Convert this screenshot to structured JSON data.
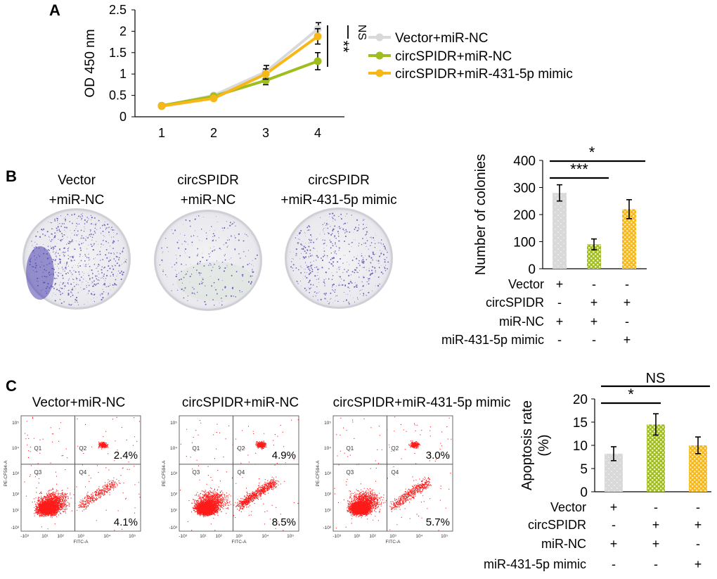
{
  "panels": {
    "a": "A",
    "b": "B",
    "c": "C"
  },
  "colors": {
    "vector": "#d9d9d9",
    "circ_nc": "#9fbd1d",
    "circ_mimic": "#f7b718",
    "flow_dot": "#ff1a1a",
    "plate_stain": "#4b3fae"
  },
  "chart_data": [
    {
      "id": "A",
      "type": "line",
      "title": "",
      "xlabel": "",
      "ylabel": "OD 450 nm",
      "x": [
        1,
        2,
        3,
        4
      ],
      "x_ticks": [
        "1",
        "2",
        "3",
        "4"
      ],
      "ylim": [
        0,
        2.5
      ],
      "y_ticks": [
        "0",
        "0.5",
        "1",
        "1.5",
        "2",
        "2.5"
      ],
      "series": [
        {
          "name": "Vector+miR-NC",
          "values": [
            0.25,
            0.5,
            1.05,
            2.05
          ],
          "errors": [
            0.03,
            0.04,
            0.15,
            0.15
          ],
          "color_key": "vector"
        },
        {
          "name": "circSPIDR+miR-NC",
          "values": [
            0.26,
            0.48,
            0.85,
            1.3
          ],
          "errors": [
            0.03,
            0.04,
            0.1,
            0.2
          ],
          "color_key": "circ_nc"
        },
        {
          "name": "circSPIDR+miR-431-5p mimic",
          "values": [
            0.25,
            0.43,
            1.0,
            1.88
          ],
          "errors": [
            0.03,
            0.04,
            0.12,
            0.18
          ],
          "color_key": "circ_mimic"
        }
      ],
      "significance": [
        "**",
        "NS"
      ],
      "legend_position": "right"
    },
    {
      "id": "B",
      "type": "bar",
      "ylabel": "Number of colonies",
      "ylim": [
        0,
        400
      ],
      "y_ticks": [
        "0",
        "100",
        "200",
        "300",
        "400"
      ],
      "values": [
        280,
        90,
        220
      ],
      "errors": [
        30,
        20,
        35
      ],
      "patterns": [
        "vector",
        "circ_nc",
        "circ_mimic"
      ],
      "significance": [
        "***",
        "*"
      ],
      "conditions": [
        {
          "label": "Vector",
          "marks": [
            "+",
            "-",
            "-"
          ]
        },
        {
          "label": "circSPIDR",
          "marks": [
            "-",
            "+",
            "+"
          ]
        },
        {
          "label": "miR-NC",
          "marks": [
            "+",
            "+",
            "-"
          ]
        },
        {
          "label": "miR-431-5p mimic",
          "marks": [
            "-",
            "-",
            "+"
          ]
        }
      ]
    },
    {
      "id": "C",
      "type": "bar",
      "ylabel_line1": "Apoptosis rate",
      "ylabel_line2": "(%)",
      "ylim": [
        0,
        20
      ],
      "y_ticks": [
        "0",
        "5",
        "10",
        "15",
        "20"
      ],
      "values": [
        8.2,
        14.5,
        10.0
      ],
      "errors": [
        1.5,
        2.3,
        1.8
      ],
      "patterns": [
        "vector",
        "circ_nc",
        "circ_mimic"
      ],
      "significance": [
        "*",
        "NS"
      ],
      "conditions": [
        {
          "label": "Vector",
          "marks": [
            "+",
            "-",
            "-"
          ]
        },
        {
          "label": "circSPIDR",
          "marks": [
            "-",
            "+",
            "+"
          ]
        },
        {
          "label": "miR-NC",
          "marks": [
            "+",
            "+",
            "-"
          ]
        },
        {
          "label": "miR-431-5p mimic",
          "marks": [
            "-",
            "-",
            "+"
          ]
        }
      ]
    }
  ],
  "plates": [
    {
      "line1": "Vector",
      "line2": "+miR-NC",
      "density": 0.85
    },
    {
      "line1": "circSPIDR",
      "line2": "+miR-NC",
      "density": 0.2
    },
    {
      "line1": "circSPIDR",
      "line2": "+miR-431-5p mimic",
      "density": 0.6
    }
  ],
  "flow": {
    "titles": [
      "Vector+miR-NC",
      "circSPIDR+miR-NC",
      "circSPIDR+miR-431-5p mimic"
    ],
    "q2": [
      "2.4%",
      "4.9%",
      "3.0%"
    ],
    "q4": [
      "4.1%",
      "8.5%",
      "5.7%"
    ],
    "late_fraction": [
      0.024,
      0.049,
      0.03
    ],
    "early_fraction": [
      0.041,
      0.085,
      0.057
    ],
    "quadrants": [
      "Q1",
      "Q2",
      "Q3",
      "Q4"
    ],
    "xaxis": "FITC-A",
    "yaxis": "PE-CF594-A",
    "x_ticks": [
      "-10³",
      "10¹",
      "10²",
      "10³",
      "10⁴",
      "10⁵"
    ],
    "y_ticks": [
      "-10³",
      "10¹",
      "10²",
      "10³",
      "10⁴",
      "10⁵"
    ]
  }
}
